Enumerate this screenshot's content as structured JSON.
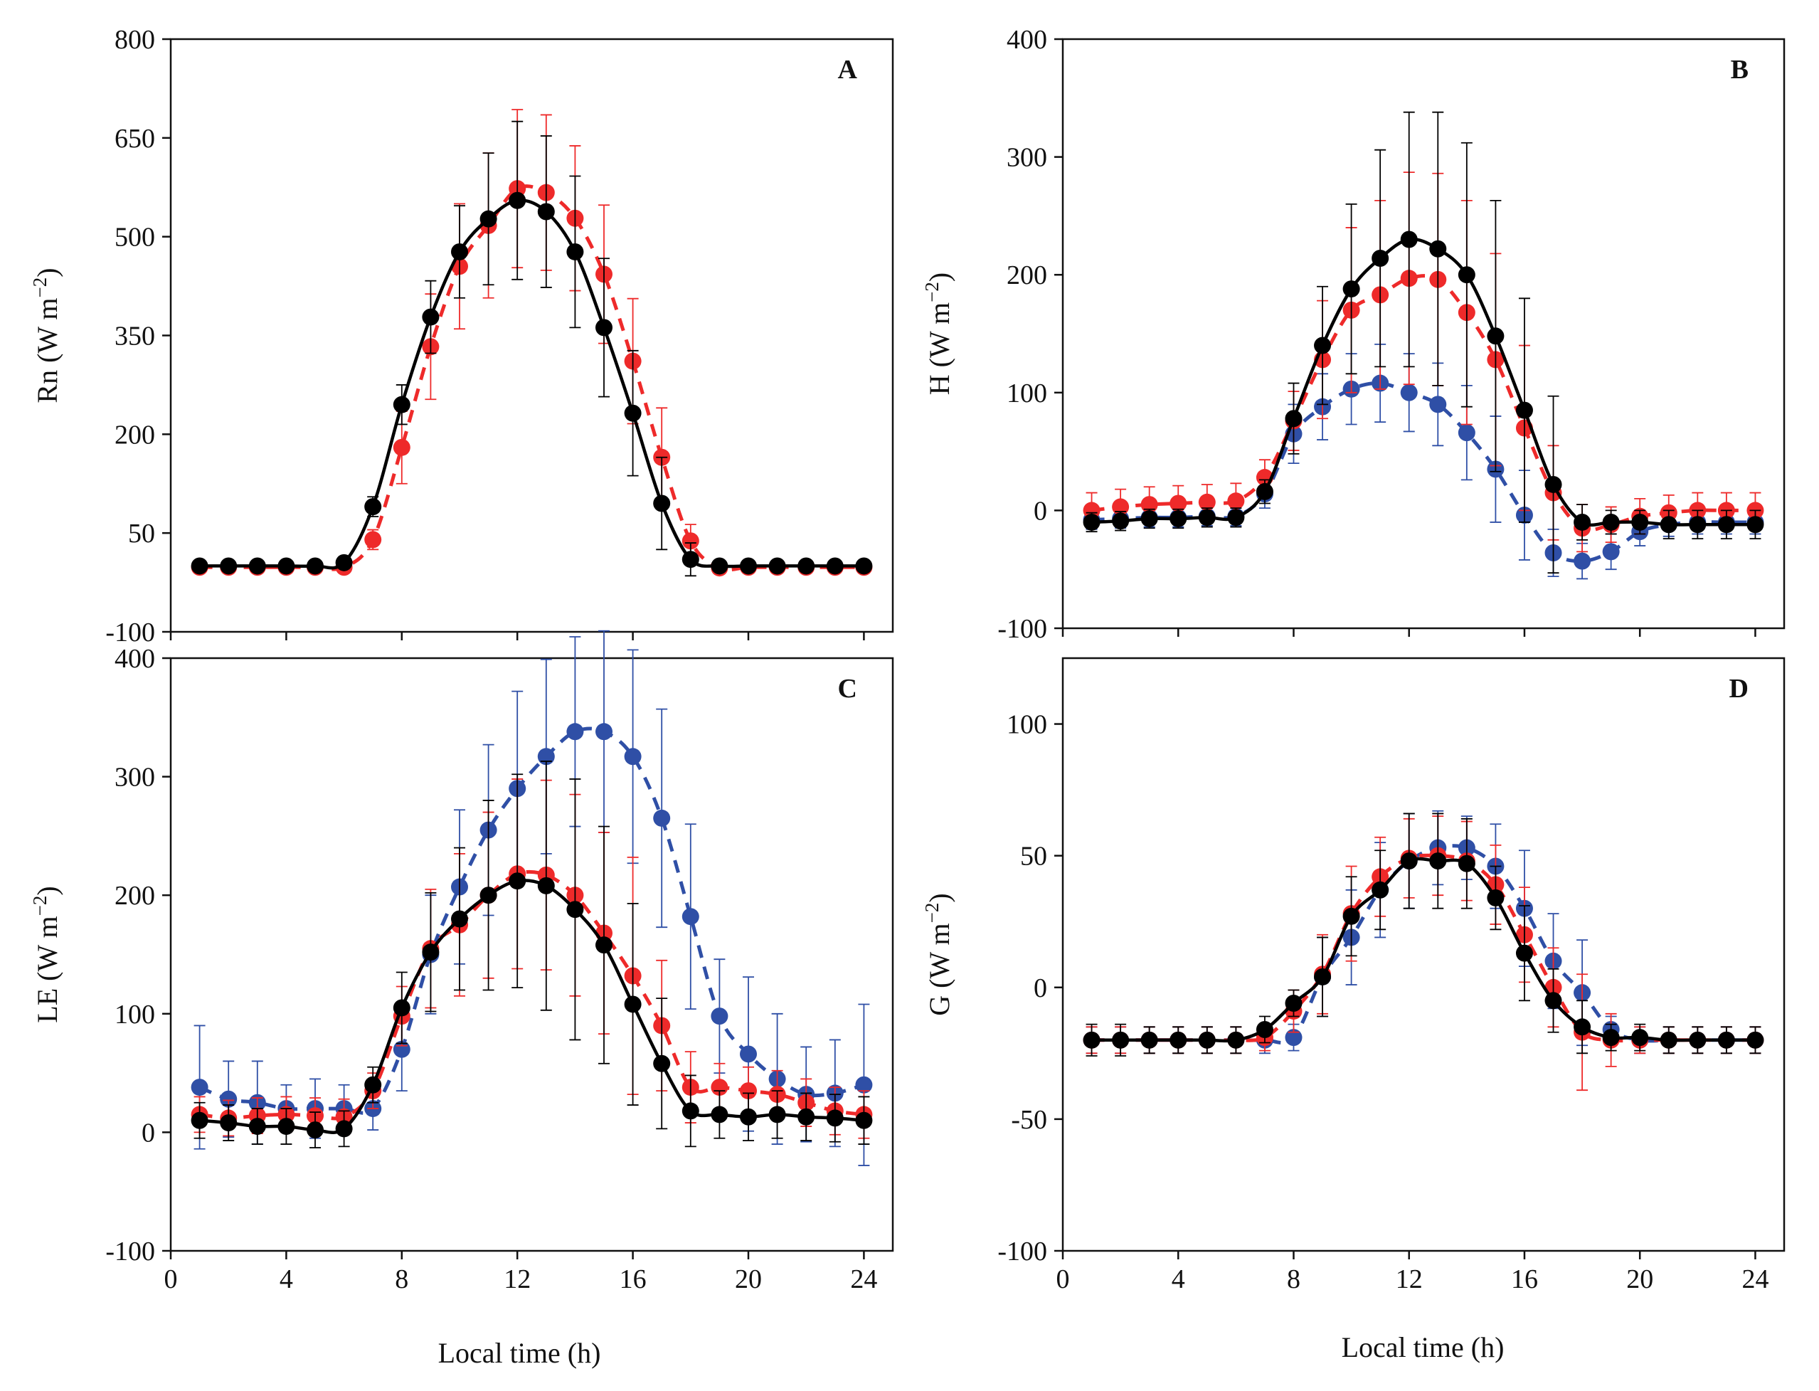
{
  "colors": {
    "black": "#000000",
    "red": "#ee2a2a",
    "blue": "#2f4fa6"
  },
  "xlabel": "Local time (h)",
  "chart_data": [
    {
      "panel": "A",
      "type": "line",
      "ylabel_text": "Rn (W m",
      "ylabel_sup": "−2",
      "ylabel_close": ")",
      "xlim": [
        0,
        25
      ],
      "ylim": [
        -100,
        800
      ],
      "xticks": [
        0,
        4,
        8,
        12,
        16,
        20,
        24
      ],
      "xtick_labels": [
        "0",
        "4",
        "8",
        "12",
        "16",
        "20",
        "24"
      ],
      "yticks": [
        -100,
        50,
        200,
        350,
        500,
        650,
        800
      ],
      "ytick_labels": [
        "-100",
        "50",
        "200",
        "350",
        "500",
        "650",
        "800"
      ],
      "x": [
        1,
        2,
        3,
        4,
        5,
        6,
        7,
        8,
        9,
        10,
        11,
        12,
        13,
        14,
        15,
        16,
        17,
        18,
        19,
        20,
        21,
        22,
        23,
        24
      ],
      "series": [
        {
          "name": "red",
          "style": "dashed",
          "color": "red",
          "values": [
            -2,
            -2,
            -2,
            -2,
            -2,
            -2,
            40,
            180,
            333,
            455,
            517,
            573,
            567,
            528,
            443,
            311,
            165,
            38,
            -3,
            -2,
            -2,
            -2,
            -2,
            -2
          ],
          "errors": [
            4,
            4,
            4,
            4,
            4,
            4,
            15,
            55,
            80,
            95,
            110,
            120,
            118,
            110,
            105,
            95,
            75,
            25,
            4,
            4,
            4,
            4,
            4,
            4
          ]
        },
        {
          "name": "black",
          "style": "solid",
          "color": "black",
          "values": [
            0,
            0,
            0,
            0,
            0,
            5,
            90,
            245,
            378,
            477,
            527,
            555,
            538,
            477,
            362,
            232,
            95,
            10,
            0,
            0,
            0,
            0,
            0,
            0
          ],
          "errors": [
            4,
            4,
            4,
            4,
            4,
            4,
            15,
            30,
            55,
            70,
            100,
            120,
            115,
            115,
            105,
            95,
            70,
            25,
            4,
            4,
            4,
            4,
            4,
            4
          ]
        }
      ]
    },
    {
      "panel": "B",
      "type": "line",
      "ylabel_text": "H (W m",
      "ylabel_sup": "−2",
      "ylabel_close": ")",
      "xlim": [
        0,
        25
      ],
      "ylim": [
        -100,
        400
      ],
      "xticks": [
        0,
        4,
        8,
        12,
        16,
        20,
        24
      ],
      "xtick_labels": [
        "0",
        "4",
        "8",
        "12",
        "16",
        "20",
        "24"
      ],
      "yticks": [
        -100,
        0,
        100,
        200,
        300,
        400
      ],
      "ytick_labels": [
        "-100",
        "0",
        "100",
        "200",
        "300",
        "400"
      ],
      "x": [
        1,
        2,
        3,
        4,
        5,
        6,
        7,
        8,
        9,
        10,
        11,
        12,
        13,
        14,
        15,
        16,
        17,
        18,
        19,
        20,
        21,
        22,
        23,
        24
      ],
      "series": [
        {
          "name": "blue",
          "style": "dashed",
          "color": "blue",
          "values": [
            -8,
            -7,
            -6,
            -6,
            -5,
            -5,
            14,
            65,
            88,
            103,
            108,
            100,
            90,
            66,
            35,
            -4,
            -36,
            -43,
            -35,
            -18,
            -12,
            -10,
            -10,
            -10
          ],
          "errors": [
            8,
            8,
            8,
            8,
            8,
            8,
            12,
            25,
            28,
            30,
            33,
            33,
            35,
            40,
            45,
            38,
            20,
            15,
            15,
            12,
            10,
            10,
            10,
            10
          ]
        },
        {
          "name": "red",
          "style": "dashed",
          "color": "red",
          "values": [
            0,
            3,
            5,
            6,
            7,
            8,
            28,
            76,
            128,
            170,
            183,
            197,
            196,
            168,
            128,
            70,
            15,
            -15,
            -12,
            -5,
            -2,
            0,
            0,
            0
          ],
          "errors": [
            15,
            15,
            15,
            15,
            15,
            15,
            15,
            25,
            50,
            70,
            80,
            90,
            90,
            95,
            90,
            70,
            40,
            20,
            15,
            15,
            15,
            15,
            15,
            15
          ]
        },
        {
          "name": "black",
          "style": "solid",
          "color": "black",
          "values": [
            -10,
            -9,
            -7,
            -7,
            -6,
            -6,
            16,
            78,
            140,
            188,
            214,
            230,
            222,
            200,
            148,
            85,
            22,
            -10,
            -10,
            -10,
            -12,
            -12,
            -12,
            -12
          ],
          "errors": [
            8,
            8,
            8,
            8,
            8,
            8,
            10,
            30,
            50,
            72,
            92,
            108,
            116,
            112,
            115,
            95,
            75,
            15,
            10,
            10,
            12,
            12,
            12,
            12
          ]
        }
      ]
    },
    {
      "panel": "C",
      "type": "line",
      "ylabel_text": "LE (W m",
      "ylabel_sup": "−2",
      "ylabel_close": ")",
      "xlim": [
        0,
        25
      ],
      "ylim": [
        -100,
        400
      ],
      "xticks": [
        0,
        4,
        8,
        12,
        16,
        20,
        24
      ],
      "xtick_labels": [
        "0",
        "4",
        "8",
        "12",
        "16",
        "20",
        "24"
      ],
      "yticks": [
        -100,
        0,
        100,
        200,
        300,
        400
      ],
      "ytick_labels": [
        "-100",
        "0",
        "100",
        "200",
        "300",
        "400"
      ],
      "x": [
        1,
        2,
        3,
        4,
        5,
        6,
        7,
        8,
        9,
        10,
        11,
        12,
        13,
        14,
        15,
        16,
        17,
        18,
        19,
        20,
        21,
        22,
        23,
        24
      ],
      "series": [
        {
          "name": "blue",
          "style": "dashed",
          "color": "blue",
          "values": [
            38,
            28,
            25,
            20,
            20,
            20,
            20,
            70,
            150,
            207,
            255,
            290,
            317,
            338,
            338,
            317,
            265,
            182,
            98,
            66,
            45,
            32,
            33,
            40
          ],
          "errors": [
            52,
            32,
            35,
            20,
            25,
            20,
            18,
            35,
            50,
            65,
            72,
            82,
            82,
            80,
            85,
            90,
            92,
            78,
            48,
            65,
            55,
            40,
            45,
            68
          ]
        },
        {
          "name": "red",
          "style": "dashed",
          "color": "red",
          "values": [
            15,
            12,
            14,
            15,
            14,
            13,
            35,
            98,
            155,
            175,
            200,
            218,
            217,
            200,
            168,
            132,
            90,
            38,
            38,
            35,
            32,
            25,
            18,
            15
          ],
          "errors": [
            15,
            15,
            15,
            15,
            15,
            15,
            15,
            25,
            50,
            60,
            70,
            80,
            80,
            85,
            85,
            100,
            55,
            30,
            20,
            20,
            20,
            20,
            20,
            20
          ]
        },
        {
          "name": "black",
          "style": "solid",
          "color": "black",
          "values": [
            10,
            8,
            5,
            5,
            2,
            3,
            40,
            105,
            152,
            180,
            200,
            212,
            208,
            188,
            158,
            108,
            58,
            18,
            15,
            13,
            15,
            13,
            12,
            10
          ],
          "errors": [
            15,
            15,
            15,
            15,
            15,
            15,
            15,
            30,
            50,
            60,
            80,
            90,
            105,
            110,
            100,
            85,
            55,
            30,
            20,
            20,
            20,
            20,
            20,
            20
          ]
        }
      ]
    },
    {
      "panel": "D",
      "type": "line",
      "ylabel_text": "G (W m",
      "ylabel_sup": "−2",
      "ylabel_close": ")",
      "xlim": [
        0,
        25
      ],
      "ylim": [
        -100,
        125
      ],
      "xticks": [
        0,
        4,
        8,
        12,
        16,
        20,
        24
      ],
      "xtick_labels": [
        "0",
        "4",
        "8",
        "12",
        "16",
        "20",
        "24"
      ],
      "yticks": [
        -100,
        -50,
        0,
        50,
        100
      ],
      "ytick_labels": [
        "-100",
        "-50",
        "0",
        "50",
        "100"
      ],
      "x": [
        1,
        2,
        3,
        4,
        5,
        6,
        7,
        8,
        9,
        10,
        11,
        12,
        13,
        14,
        15,
        16,
        17,
        18,
        19,
        20,
        21,
        22,
        23,
        24
      ],
      "series": [
        {
          "name": "blue",
          "style": "dashed",
          "color": "blue",
          "values": [
            -20,
            -20,
            -20,
            -20,
            -20,
            -20,
            -20,
            -19,
            4,
            19,
            37,
            48,
            53,
            53,
            46,
            30,
            10,
            -2,
            -16,
            -20,
            -20,
            -20,
            -20,
            -20
          ],
          "errors": [
            5,
            5,
            5,
            5,
            5,
            5,
            5,
            5,
            15,
            18,
            18,
            18,
            14,
            12,
            16,
            22,
            18,
            20,
            5,
            5,
            5,
            5,
            5,
            5
          ]
        },
        {
          "name": "red",
          "style": "dashed",
          "color": "red",
          "values": [
            -20,
            -20,
            -20,
            -20,
            -20,
            -20,
            -19,
            -9,
            5,
            28,
            42,
            49,
            50,
            48,
            39,
            20,
            0,
            -17,
            -20,
            -20,
            -20,
            -20,
            -20,
            -20
          ],
          "errors": [
            5,
            5,
            5,
            5,
            5,
            5,
            5,
            8,
            15,
            18,
            15,
            15,
            15,
            15,
            15,
            18,
            15,
            22,
            10,
            5,
            5,
            5,
            5,
            5
          ]
        },
        {
          "name": "black",
          "style": "solid",
          "color": "black",
          "values": [
            -20,
            -20,
            -20,
            -20,
            -20,
            -20,
            -16,
            -6,
            4,
            27,
            37,
            48,
            48,
            47,
            34,
            13,
            -5,
            -15,
            -19,
            -19,
            -20,
            -20,
            -20,
            -20
          ],
          "errors": [
            6,
            6,
            5,
            5,
            5,
            5,
            5,
            5,
            15,
            15,
            15,
            18,
            18,
            17,
            12,
            18,
            12,
            10,
            5,
            5,
            5,
            5,
            5,
            5
          ]
        }
      ]
    }
  ]
}
